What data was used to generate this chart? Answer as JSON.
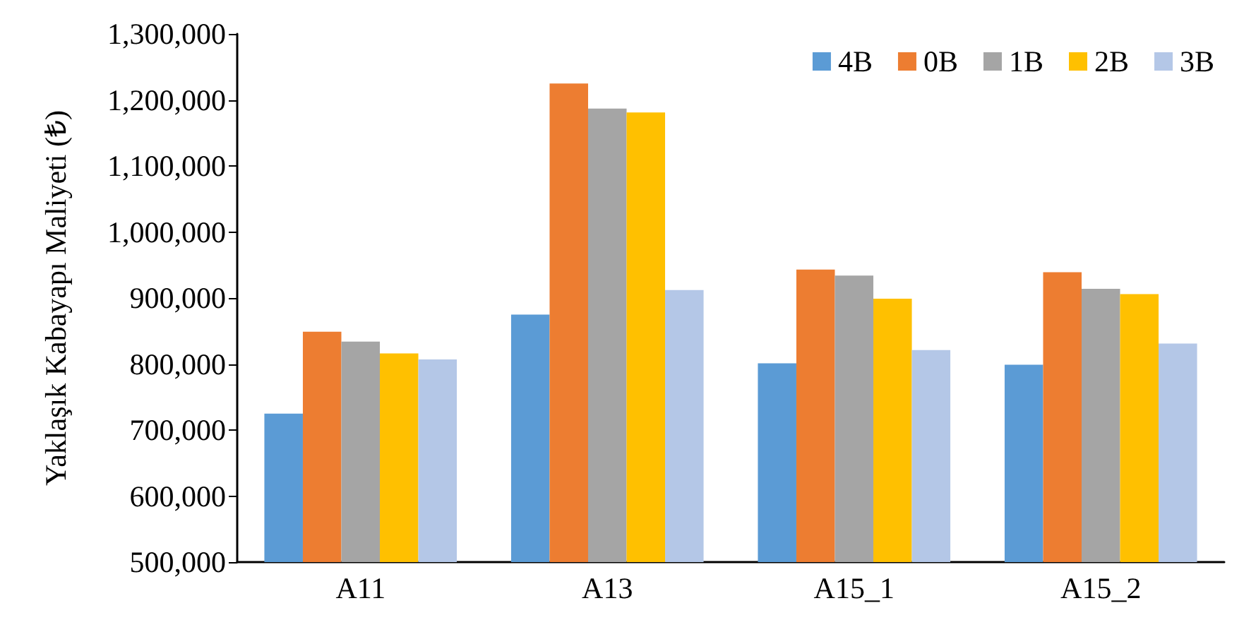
{
  "chart_data": {
    "type": "bar",
    "ylabel": "Yaklaşık Kabayapı Maliyeti (₺)",
    "categories": [
      "A11",
      "A13",
      "A15_1",
      "A15_2"
    ],
    "series": [
      {
        "name": "4B",
        "color": "#5b9bd5",
        "values": [
          725000,
          875000,
          801000,
          799000
        ]
      },
      {
        "name": "0B",
        "color": "#ed7d31",
        "values": [
          849000,
          1225000,
          943000,
          939000
        ]
      },
      {
        "name": "1B",
        "color": "#a5a5a5",
        "values": [
          834000,
          1187000,
          934000,
          914000
        ]
      },
      {
        "name": "2B",
        "color": "#ffc000",
        "values": [
          816000,
          1181000,
          899000,
          906000
        ]
      },
      {
        "name": "3B",
        "color": "#b4c7e7",
        "values": [
          807000,
          912000,
          821000,
          831000
        ]
      }
    ],
    "ylim": [
      500000,
      1300000
    ],
    "yticks": [
      {
        "value": 500000,
        "label": "500,000"
      },
      {
        "value": 600000,
        "label": "600,000"
      },
      {
        "value": 700000,
        "label": "700,000"
      },
      {
        "value": 800000,
        "label": "800,000"
      },
      {
        "value": 900000,
        "label": "900,000"
      },
      {
        "value": 1000000,
        "label": "1,000,000"
      },
      {
        "value": 1100000,
        "label": "1,100,000"
      },
      {
        "value": 1200000,
        "label": "1,200,000"
      },
      {
        "value": 1300000,
        "label": "1,300,000"
      }
    ],
    "grid": false,
    "legend": "top right"
  }
}
